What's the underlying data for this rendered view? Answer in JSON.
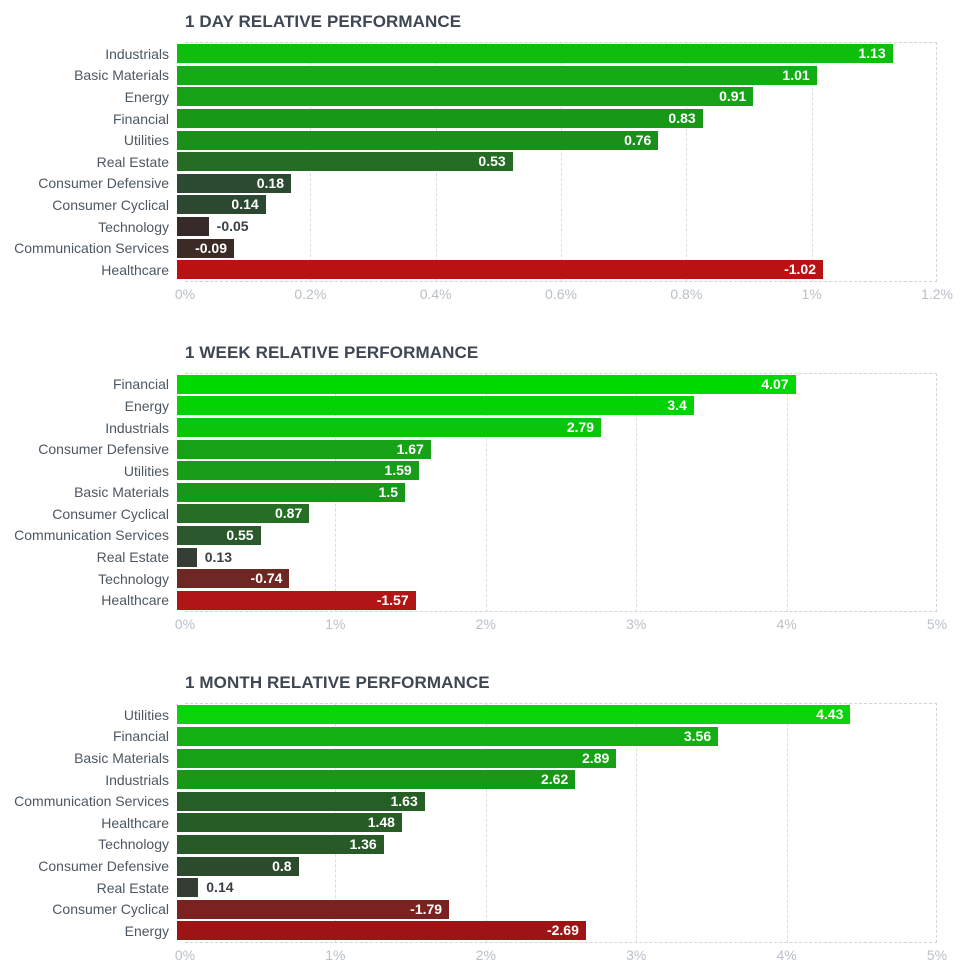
{
  "palette": {
    "title_text": "#3f4752",
    "category_text": "#4d5761",
    "axis_text": "#b9c0c7",
    "grid_line": "#dadcde",
    "frame_line": "#d3d6d9",
    "value_text_inside": "#ffffff",
    "value_text_outside": "#3a3f45",
    "positive_max_green": "#00d900",
    "negative_max_red": "#ba1212",
    "background": "#ffffff"
  },
  "chart_data": [
    {
      "type": "bar",
      "orientation": "horizontal",
      "title": "1 DAY RELATIVE PERFORMANCE",
      "xlim": [
        0,
        1.2
      ],
      "tick_labels": [
        "0%",
        "0.2%",
        "0.4%",
        "0.6%",
        "0.8%",
        "1%",
        "1.2%"
      ],
      "grid": true,
      "categories": [
        "Industrials",
        "Basic Materials",
        "Energy",
        "Financial",
        "Utilities",
        "Real Estate",
        "Consumer Defensive",
        "Consumer Cyclical",
        "Technology",
        "Communication Services",
        "Healthcare"
      ],
      "values": [
        1.13,
        1.01,
        0.91,
        0.83,
        0.76,
        0.53,
        0.18,
        0.14,
        -0.05,
        -0.09,
        -1.02
      ],
      "value_labels": [
        "1.13",
        "1.01",
        "0.91",
        "0.83",
        "0.76",
        "0.53",
        "0.18",
        "0.14",
        "-0.05",
        "-0.09",
        "-1.02"
      ],
      "bar_colors": [
        "#0dbe0d",
        "#13ac13",
        "#15a215",
        "#179817",
        "#1a8f1a",
        "#256d25",
        "#2c4a31",
        "#2d4830",
        "#362b28",
        "#3b2a25",
        "#ba1212"
      ],
      "label_placement": [
        "inside",
        "inside",
        "inside",
        "inside",
        "inside",
        "inside",
        "inside",
        "inside",
        "outside",
        "inside",
        "inside"
      ]
    },
    {
      "type": "bar",
      "orientation": "horizontal",
      "title": "1 WEEK RELATIVE PERFORMANCE",
      "xlim": [
        0,
        5
      ],
      "tick_labels": [
        "0%",
        "1%",
        "2%",
        "3%",
        "4%",
        "5%"
      ],
      "grid": true,
      "categories": [
        "Financial",
        "Energy",
        "Industrials",
        "Consumer Defensive",
        "Utilities",
        "Basic Materials",
        "Consumer Cyclical",
        "Communication Services",
        "Real Estate",
        "Technology",
        "Healthcare"
      ],
      "values": [
        4.07,
        3.4,
        2.79,
        1.67,
        1.59,
        1.5,
        0.87,
        0.55,
        0.13,
        -0.74,
        -1.57
      ],
      "value_labels": [
        "4.07",
        "3.4",
        "2.79",
        "1.67",
        "1.59",
        "1.5",
        "0.87",
        "0.55",
        "0.13",
        "-0.74",
        "-1.57"
      ],
      "bar_colors": [
        "#00d900",
        "#02d302",
        "#0ac50a",
        "#16a116",
        "#179d17",
        "#189818",
        "#266e26",
        "#2c582e",
        "#343e34",
        "#6e2823",
        "#b11515"
      ],
      "label_placement": [
        "inside",
        "inside",
        "inside",
        "inside",
        "inside",
        "inside",
        "inside",
        "inside",
        "outside",
        "inside",
        "inside"
      ]
    },
    {
      "type": "bar",
      "orientation": "horizontal",
      "title": "1 MONTH RELATIVE PERFORMANCE",
      "xlim": [
        0,
        5
      ],
      "tick_labels": [
        "0%",
        "1%",
        "2%",
        "3%",
        "4%",
        "5%"
      ],
      "grid": true,
      "categories": [
        "Utilities",
        "Financial",
        "Basic Materials",
        "Industrials",
        "Communication Services",
        "Healthcare",
        "Technology",
        "Consumer Defensive",
        "Real Estate",
        "Consumer Cyclical",
        "Energy"
      ],
      "values": [
        4.43,
        3.56,
        2.89,
        2.62,
        1.63,
        1.48,
        1.36,
        0.8,
        0.14,
        -1.79,
        -2.69
      ],
      "value_labels": [
        "4.43",
        "3.56",
        "2.89",
        "2.62",
        "1.63",
        "1.48",
        "1.36",
        "0.8",
        "0.14",
        "-1.79",
        "-2.69"
      ],
      "bar_colors": [
        "#0bd40b",
        "#12b012",
        "#15a315",
        "#179917",
        "#265f26",
        "#275c27",
        "#285a28",
        "#2c4a2c",
        "#353c34",
        "#7c2121",
        "#9e1414"
      ],
      "label_placement": [
        "inside",
        "inside",
        "inside",
        "inside",
        "inside",
        "inside",
        "inside",
        "inside",
        "outside",
        "inside",
        "inside"
      ]
    }
  ]
}
